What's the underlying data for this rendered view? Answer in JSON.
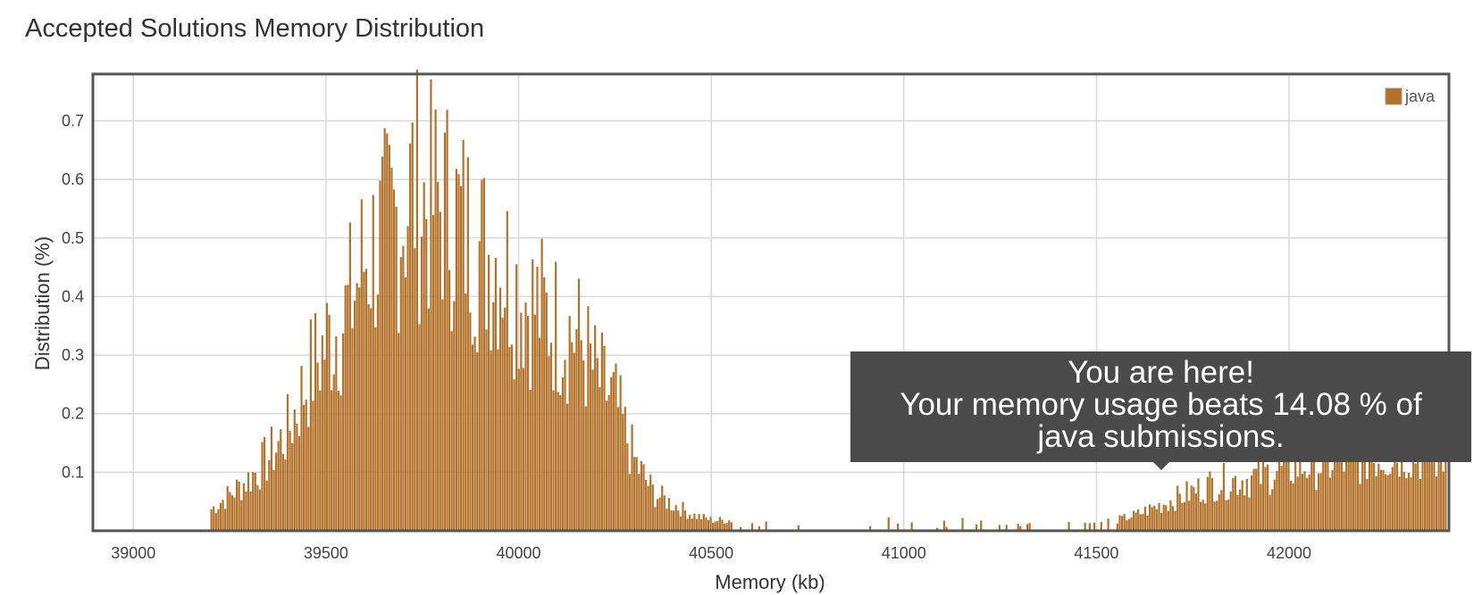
{
  "title": "Accepted Solutions Memory Distribution",
  "tooltip": {
    "line1": "You are here!",
    "line2": "Your memory usage beats 14.08 % of",
    "line3": "java submissions."
  },
  "colors": {
    "bar": "#b3722b",
    "axis": "#555555",
    "grid": "#d9d9d9"
  },
  "chart_data": {
    "type": "bar",
    "title": "Accepted Solutions Memory Distribution",
    "xlabel": "Memory (kb)",
    "ylabel": "Distribution (%)",
    "xlim": [
      38895,
      42415
    ],
    "ylim": [
      0,
      0.78
    ],
    "xticks": [
      39000,
      39500,
      40000,
      40500,
      41000,
      41500,
      42000
    ],
    "yticks": [
      0.1,
      0.2,
      0.3,
      0.4,
      0.5,
      0.6,
      0.7
    ],
    "grid": true,
    "legend": "top-right",
    "series": [
      {
        "name": "java",
        "color": "#b3722b",
        "peaks": [
          {
            "x": 39250,
            "y": 0.07
          },
          {
            "x": 39300,
            "y": 0.1
          },
          {
            "x": 39350,
            "y": 0.14
          },
          {
            "x": 39400,
            "y": 0.19
          },
          {
            "x": 39450,
            "y": 0.29
          },
          {
            "x": 39500,
            "y": 0.36
          },
          {
            "x": 39550,
            "y": 0.41
          },
          {
            "x": 39600,
            "y": 0.52
          },
          {
            "x": 39650,
            "y": 0.56
          },
          {
            "x": 39700,
            "y": 0.61
          },
          {
            "x": 39725,
            "y": 0.66
          },
          {
            "x": 39750,
            "y": 0.62
          },
          {
            "x": 39800,
            "y": 0.62
          },
          {
            "x": 39850,
            "y": 0.58
          },
          {
            "x": 39900,
            "y": 0.53
          },
          {
            "x": 39950,
            "y": 0.52
          },
          {
            "x": 40000,
            "y": 0.45
          },
          {
            "x": 40050,
            "y": 0.42
          },
          {
            "x": 40100,
            "y": 0.39
          },
          {
            "x": 40150,
            "y": 0.37
          },
          {
            "x": 40200,
            "y": 0.29
          },
          {
            "x": 40250,
            "y": 0.24
          },
          {
            "x": 40300,
            "y": 0.13
          },
          {
            "x": 40350,
            "y": 0.07
          },
          {
            "x": 40400,
            "y": 0.05
          },
          {
            "x": 40450,
            "y": 0.03
          },
          {
            "x": 40500,
            "y": 0.02
          },
          {
            "x": 40800,
            "y": 0.02
          },
          {
            "x": 41500,
            "y": 0.01
          },
          {
            "x": 41600,
            "y": 0.03
          },
          {
            "x": 41700,
            "y": 0.06
          },
          {
            "x": 41800,
            "y": 0.09
          },
          {
            "x": 41900,
            "y": 0.1
          },
          {
            "x": 42000,
            "y": 0.12
          },
          {
            "x": 42100,
            "y": 0.13
          },
          {
            "x": 42200,
            "y": 0.14
          },
          {
            "x": 42300,
            "y": 0.15
          },
          {
            "x": 42400,
            "y": 0.14
          }
        ]
      }
    ]
  }
}
